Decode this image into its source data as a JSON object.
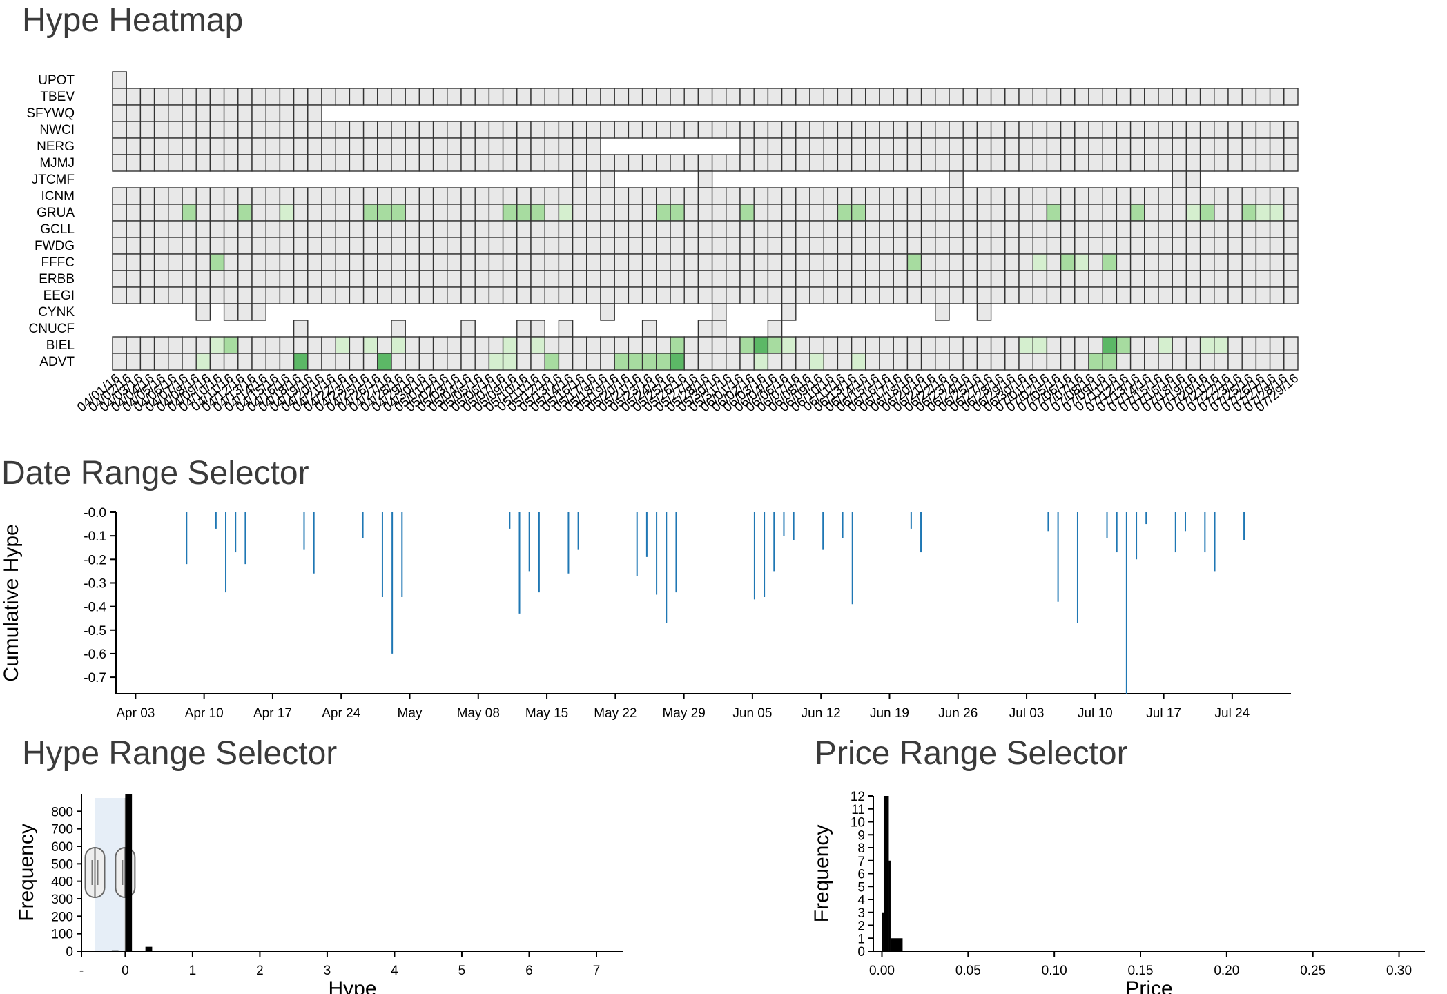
{
  "titles": {
    "heatmap": "Hype Heatmap",
    "date_range": "Date Range Selector",
    "hype_range": "Hype Range Selector",
    "price_range": "Price Range Selector"
  },
  "colors": {
    "cell_empty": "#e8e8e8",
    "cell_stroke": "#333333",
    "hype_low": "#d5efcf",
    "hype_mid": "#a7dca0",
    "hype_high": "#5cb866",
    "bar": "#1f77b4",
    "brush": "#e6eef7",
    "brush_handle": "#999999"
  },
  "chart_data": [
    {
      "id": "hype-heatmap",
      "type": "heatmap",
      "title": "Hype Heatmap",
      "rows": [
        "UPOT",
        "TBEV",
        "SFYWQ",
        "NWCI",
        "NERG",
        "MJMJ",
        "JTCMF",
        "ICNM",
        "GRUA",
        "GCLL",
        "FWDG",
        "FFFC",
        "ERBB",
        "EEGI",
        "CYNK",
        "CNUCF",
        "BIEL",
        "ADVT"
      ],
      "columns": [
        "04/01/16",
        "04/02/16",
        "04/03/16",
        "04/04/16",
        "04/05/16",
        "04/06/16",
        "04/07/16",
        "04/08/16",
        "04/09/16",
        "04/10/16",
        "04/11/16",
        "04/12/16",
        "04/13/16",
        "04/14/16",
        "04/15/16",
        "04/16/16",
        "04/17/16",
        "04/18/16",
        "04/19/16",
        "04/20/16",
        "04/21/16",
        "04/22/16",
        "04/23/16",
        "04/24/16",
        "04/25/16",
        "04/26/16",
        "04/27/16",
        "04/28/16",
        "04/29/16",
        "04/30/16",
        "05/01/16",
        "05/02/16",
        "05/03/16",
        "05/04/16",
        "05/05/16",
        "05/06/16",
        "05/07/16",
        "05/08/16",
        "05/09/16",
        "05/10/16",
        "05/11/16",
        "05/12/16",
        "05/13/16",
        "05/14/16",
        "05/15/16",
        "05/16/16",
        "05/17/16",
        "05/18/16",
        "05/19/16",
        "05/20/16",
        "05/21/16",
        "05/22/16",
        "05/23/16",
        "05/24/16",
        "05/25/16",
        "05/26/16",
        "05/27/16",
        "05/28/16",
        "05/29/16",
        "05/30/16",
        "05/31/16",
        "06/01/16",
        "06/02/16",
        "06/03/16",
        "06/04/16",
        "06/05/16",
        "06/06/16",
        "06/07/16",
        "06/08/16",
        "06/09/16",
        "06/10/16",
        "06/11/16",
        "06/12/16",
        "06/13/16",
        "06/14/16",
        "06/15/16",
        "06/16/16",
        "06/17/16",
        "06/18/16",
        "06/19/16",
        "06/20/16",
        "06/21/16",
        "06/22/16",
        "06/23/16",
        "06/24/16",
        "06/25/16",
        "06/26/16",
        "06/27/16",
        "06/28/16",
        "06/29/16",
        "06/30/16",
        "07/01/16",
        "07/02/16",
        "07/03/16",
        "07/04/16",
        "07/05/16",
        "07/06/16",
        "07/07/16",
        "07/08/16",
        "07/09/16",
        "07/10/16",
        "07/11/16",
        "07/12/16",
        "07/13/16",
        "07/14/16",
        "07/15/16",
        "07/16/16",
        "07/17/16",
        "07/18/16",
        "07/19/16",
        "07/20/16",
        "07/21/16",
        "07/22/16",
        "07/23/16",
        "07/24/16",
        "07/25/16",
        "07/26/16",
        "07/27/16",
        "07/28/16",
        "07/29/16"
      ],
      "tick_labels": [
        "04/01/16",
        "04/02/16",
        "04/03/16",
        "04/04/16",
        "04/05/16",
        "04/06/16",
        "04/07/16",
        "04/08/16",
        "04/09/16",
        "04/10/16",
        "04/11/16",
        "04/12/16",
        "04/13/16",
        "04/14/16",
        "04/15/16",
        "04/16/16",
        "04/18/16",
        "04/19/16",
        "04/20/16",
        "04/21/16",
        "04/22/16",
        "04/23/16",
        "04/25/16",
        "04/26/16",
        "04/27/16",
        "04/28/16",
        "04/29/16",
        "04/30/16",
        "05/01/16",
        "05/02/16",
        "05/03/16",
        "05/04/16",
        "05/05/16",
        "05/06/16",
        "05/07/16",
        "05/09/16",
        "05/10/16",
        "05/11/16",
        "05/12/16",
        "05/13/16",
        "05/14/16",
        "05/16/16",
        "05/17/16",
        "05/18/16",
        "05/19/16",
        "05/20/16",
        "05/21/16",
        "05/23/16",
        "05/24/16",
        "05/25/16",
        "05/26/16",
        "05/27/16",
        "05/28/16",
        "05/30/16",
        "05/31/16",
        "06/01/16",
        "06/02/16",
        "06/03/16",
        "06/04/16",
        "06/06/16",
        "06/07/16",
        "06/08/16",
        "06/09/16",
        "06/10/16",
        "06/11/16",
        "06/13/16",
        "06/14/16",
        "06/15/16",
        "06/16/16",
        "06/17/16",
        "06/18/16",
        "06/20/16",
        "06/21/16",
        "06/22/16",
        "06/23/16",
        "06/24/16",
        "06/25/16",
        "06/27/16",
        "06/28/16",
        "06/29/16",
        "06/30/16",
        "07/01/16",
        "07/02/16",
        "07/05/16",
        "07/06/16",
        "07/07/16",
        "07/08/16",
        "07/09/16",
        "07/11/16",
        "07/12/16",
        "07/13/16",
        "07/14/16",
        "07/15/16",
        "07/16/16",
        "07/18/16",
        "07/19/16",
        "07/20/16",
        "07/21/16",
        "07/22/16",
        "07/23/16",
        "07/25/16",
        "07/26/16",
        "07/27/16",
        "07/28/16",
        "07/29/16"
      ],
      "cells": {
        "UPOT": {
          "present": [
            [
              0,
              0
            ]
          ],
          "hype": []
        },
        "TBEV": {
          "present": [
            [
              0,
              84
            ]
          ],
          "hype": []
        },
        "SFYWQ": {
          "present": [
            [
              0,
              14
            ]
          ],
          "hype": []
        },
        "NWCI": {
          "present": [
            [
              0,
              84
            ]
          ],
          "hype": []
        },
        "NERG": {
          "present": [
            [
              0,
              34
            ],
            [
              45,
              84
            ]
          ],
          "hype": []
        },
        "MJMJ": {
          "present": [
            [
              0,
              84
            ]
          ],
          "hype": []
        },
        "JTCMF": {
          "present": [
            [
              33,
              33
            ],
            [
              35,
              35
            ],
            [
              42,
              42
            ],
            [
              60,
              60
            ],
            [
              76,
              76
            ],
            [
              77,
              77
            ]
          ],
          "hype": []
        },
        "ICNM": {
          "present": [
            [
              0,
              84
            ]
          ],
          "hype": []
        },
        "GRUA": {
          "present": [
            [
              0,
              84
            ]
          ],
          "hype": [
            [
              5,
              2
            ],
            [
              9,
              2
            ],
            [
              12,
              1
            ],
            [
              18,
              2
            ],
            [
              19,
              2
            ],
            [
              20,
              2
            ],
            [
              28,
              2
            ],
            [
              29,
              2
            ],
            [
              30,
              2
            ],
            [
              32,
              1
            ],
            [
              39,
              2
            ],
            [
              40,
              2
            ],
            [
              45,
              2
            ],
            [
              52,
              2
            ],
            [
              53,
              2
            ],
            [
              67,
              2
            ],
            [
              73,
              2
            ],
            [
              77,
              1
            ],
            [
              78,
              2
            ],
            [
              81,
              2
            ],
            [
              82,
              1
            ],
            [
              83,
              1
            ]
          ]
        },
        "GCLL": {
          "present": [
            [
              0,
              84
            ]
          ],
          "hype": []
        },
        "FWDG": {
          "present": [
            [
              0,
              84
            ]
          ],
          "hype": []
        },
        "FFFC": {
          "present": [
            [
              0,
              84
            ]
          ],
          "hype": [
            [
              7,
              2
            ],
            [
              57,
              2
            ],
            [
              66,
              1
            ],
            [
              68,
              2
            ],
            [
              69,
              1
            ],
            [
              71,
              2
            ]
          ]
        },
        "ERBB": {
          "present": [
            [
              0,
              84
            ]
          ],
          "hype": []
        },
        "EEGI": {
          "present": [
            [
              0,
              84
            ]
          ],
          "hype": []
        },
        "CYNK": {
          "present": [
            [
              6,
              6
            ],
            [
              8,
              10
            ],
            [
              35,
              35
            ],
            [
              43,
              43
            ],
            [
              48,
              48
            ],
            [
              59,
              59
            ],
            [
              62,
              62
            ]
          ],
          "hype": []
        },
        "CNUCF": {
          "present": [
            [
              13,
              13
            ],
            [
              20,
              20
            ],
            [
              25,
              25
            ],
            [
              29,
              30
            ],
            [
              32,
              32
            ],
            [
              38,
              38
            ],
            [
              42,
              43
            ],
            [
              47,
              47
            ]
          ],
          "hype": []
        },
        "BIEL": {
          "present": [
            [
              0,
              84
            ]
          ],
          "hype": [
            [
              7,
              1
            ],
            [
              8,
              2
            ],
            [
              16,
              1
            ],
            [
              18,
              1
            ],
            [
              20,
              1
            ],
            [
              28,
              1
            ],
            [
              30,
              1
            ],
            [
              40,
              2
            ],
            [
              45,
              2
            ],
            [
              46,
              3
            ],
            [
              47,
              2
            ],
            [
              48,
              1
            ],
            [
              65,
              1
            ],
            [
              66,
              1
            ],
            [
              71,
              3
            ],
            [
              72,
              2
            ],
            [
              75,
              1
            ],
            [
              78,
              1
            ],
            [
              79,
              1
            ]
          ]
        },
        "ADVT": {
          "present": [
            [
              0,
              84
            ]
          ],
          "hype": [
            [
              6,
              1
            ],
            [
              13,
              3
            ],
            [
              19,
              3
            ],
            [
              27,
              1
            ],
            [
              28,
              1
            ],
            [
              31,
              2
            ],
            [
              36,
              2
            ],
            [
              37,
              2
            ],
            [
              38,
              2
            ],
            [
              39,
              2
            ],
            [
              40,
              3
            ],
            [
              46,
              1
            ],
            [
              50,
              1
            ],
            [
              53,
              1
            ],
            [
              70,
              2
            ],
            [
              71,
              2
            ]
          ]
        }
      }
    },
    {
      "id": "date-range-selector",
      "type": "bar",
      "title": "Date Range Selector",
      "ylabel": "Cumulative Hype",
      "xlabel": "",
      "x_range": [
        "2016-04-01",
        "2016-07-30"
      ],
      "ylim": [
        0,
        -0.77
      ],
      "yticks": [
        "-0.0",
        "-0.1",
        "-0.2",
        "-0.3",
        "-0.4",
        "-0.5",
        "-0.6",
        "-0.7"
      ],
      "xticks": [
        "Apr 03",
        "Apr 10",
        "Apr 17",
        "Apr 24",
        "May",
        "May 08",
        "May 15",
        "May 22",
        "May 29",
        "Jun 05",
        "Jun 12",
        "Jun 19",
        "Jun 26",
        "Jul 03",
        "Jul 10",
        "Jul 17",
        "Jul 24"
      ],
      "xtick_dates": [
        "2016-04-03",
        "2016-04-10",
        "2016-04-17",
        "2016-04-24",
        "2016-05-01",
        "2016-05-08",
        "2016-05-15",
        "2016-05-22",
        "2016-05-29",
        "2016-06-05",
        "2016-06-12",
        "2016-06-19",
        "2016-06-26",
        "2016-07-03",
        "2016-07-10",
        "2016-07-17",
        "2016-07-24"
      ],
      "points": [
        [
          "2016-04-08",
          -0.22
        ],
        [
          "2016-04-11",
          -0.07
        ],
        [
          "2016-04-12",
          -0.34
        ],
        [
          "2016-04-13",
          -0.17
        ],
        [
          "2016-04-14",
          -0.22
        ],
        [
          "2016-04-20",
          -0.16
        ],
        [
          "2016-04-21",
          -0.26
        ],
        [
          "2016-04-26",
          -0.11
        ],
        [
          "2016-04-28",
          -0.36
        ],
        [
          "2016-04-29",
          -0.6
        ],
        [
          "2016-04-30",
          -0.36
        ],
        [
          "2016-05-11",
          -0.07
        ],
        [
          "2016-05-12",
          -0.43
        ],
        [
          "2016-05-13",
          -0.25
        ],
        [
          "2016-05-14",
          -0.34
        ],
        [
          "2016-05-17",
          -0.26
        ],
        [
          "2016-05-18",
          -0.16
        ],
        [
          "2016-05-24",
          -0.27
        ],
        [
          "2016-05-25",
          -0.19
        ],
        [
          "2016-05-26",
          -0.35
        ],
        [
          "2016-05-27",
          -0.47
        ],
        [
          "2016-05-28",
          -0.34
        ],
        [
          "2016-06-05",
          -0.37
        ],
        [
          "2016-06-06",
          -0.36
        ],
        [
          "2016-06-07",
          -0.25
        ],
        [
          "2016-06-08",
          -0.1
        ],
        [
          "2016-06-09",
          -0.12
        ],
        [
          "2016-06-12",
          -0.16
        ],
        [
          "2016-06-14",
          -0.11
        ],
        [
          "2016-06-15",
          -0.39
        ],
        [
          "2016-06-21",
          -0.07
        ],
        [
          "2016-06-22",
          -0.17
        ],
        [
          "2016-07-05",
          -0.08
        ],
        [
          "2016-07-06",
          -0.38
        ],
        [
          "2016-07-08",
          -0.47
        ],
        [
          "2016-07-11",
          -0.11
        ],
        [
          "2016-07-12",
          -0.17
        ],
        [
          "2016-07-13",
          -0.77
        ],
        [
          "2016-07-14",
          -0.2
        ],
        [
          "2016-07-15",
          -0.05
        ],
        [
          "2016-07-18",
          -0.17
        ],
        [
          "2016-07-19",
          -0.08
        ],
        [
          "2016-07-21",
          -0.17
        ],
        [
          "2016-07-22",
          -0.25
        ],
        [
          "2016-07-25",
          -0.12
        ]
      ]
    },
    {
      "id": "hype-range-selector",
      "type": "bar",
      "title": "Hype Range Selector",
      "xlabel": "Hype",
      "ylabel": "Frequency",
      "xlim": [
        -0.65,
        7.4
      ],
      "ylim": [
        0,
        900
      ],
      "xticks": [
        "-",
        "0",
        "1",
        "2",
        "3",
        "4",
        "5",
        "6",
        "7"
      ],
      "xtick_values": [
        -0.65,
        0,
        1,
        2,
        3,
        4,
        5,
        6,
        7
      ],
      "yticks": [
        "0",
        "100",
        "200",
        "300",
        "400",
        "500",
        "600",
        "700",
        "800"
      ],
      "ytick_values": [
        0,
        100,
        200,
        300,
        400,
        500,
        600,
        700,
        800
      ],
      "bars": [
        [
          -0.6,
          -0.5,
          0
        ],
        [
          -0.2,
          -0.1,
          5
        ],
        [
          0.0,
          0.1,
          900
        ],
        [
          0.3,
          0.4,
          25
        ],
        [
          0.7,
          0.8,
          3
        ]
      ],
      "brush": [
        -0.45,
        0.0
      ]
    },
    {
      "id": "price-range-selector",
      "type": "bar",
      "title": "Price Range Selector",
      "xlabel": "Price",
      "ylabel": "Frequency",
      "xlim": [
        -0.005,
        0.315
      ],
      "ylim": [
        0,
        12
      ],
      "xticks": [
        "0.00",
        "0.05",
        "0.10",
        "0.15",
        "0.20",
        "0.25",
        "0.30"
      ],
      "xtick_values": [
        0,
        0.05,
        0.1,
        0.15,
        0.2,
        0.25,
        0.3
      ],
      "yticks": [
        "0",
        "1",
        "2",
        "3",
        "4",
        "5",
        "6",
        "7",
        "8",
        "9",
        "10",
        "11",
        "12"
      ],
      "ytick_values": [
        0,
        1,
        2,
        3,
        4,
        5,
        6,
        7,
        8,
        9,
        10,
        11,
        12
      ],
      "bars": [
        [
          0.0,
          0.001,
          3
        ],
        [
          0.001,
          0.004,
          12
        ],
        [
          0.004,
          0.005,
          7
        ],
        [
          0.005,
          0.012,
          1
        ]
      ]
    }
  ]
}
